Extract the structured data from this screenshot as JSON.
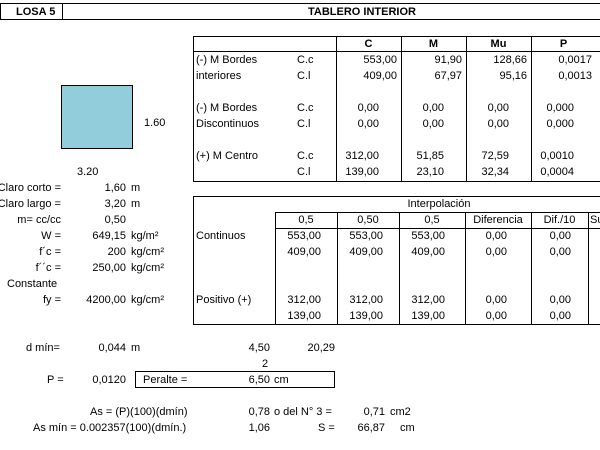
{
  "header": {
    "losa": "LOSA 5",
    "title": "TABLERO INTERIOR"
  },
  "slab_sketch": {
    "short_side": "1.60",
    "long_side": "3.20",
    "fill": "#92cddc"
  },
  "params": {
    "claro_corto": {
      "label": "Claro corto =",
      "value": "1,60",
      "unit": "m"
    },
    "claro_largo": {
      "label": "Claro largo =",
      "value": "3,20",
      "unit": "m"
    },
    "m": {
      "label": "m= cc/cc",
      "value": "0,50"
    },
    "W": {
      "label": "W =",
      "value": "649,15",
      "unit": "kg/m²"
    },
    "fc": {
      "label": "f´c =",
      "value": "200",
      "unit": "kg/cm²"
    },
    "fcc": {
      "label": "f´´c =",
      "value": "250,00",
      "unit": "kg/cm²"
    },
    "constante": "Constante",
    "fy": {
      "label": "fy =",
      "value": "4200,00",
      "unit": "kg/cm²"
    }
  },
  "moments_table": {
    "headers": [
      "C",
      "M",
      "Mu",
      "P"
    ],
    "groups": [
      {
        "label1": "(-) M Bordes",
        "label2": "interiores",
        "rows": [
          {
            "dir": "C.c",
            "values": [
              "553,00",
              "91,90",
              "128,66",
              "0,0017"
            ]
          },
          {
            "dir": "C.l",
            "values": [
              "409,00",
              "67,97",
              "95,16",
              "0,0013"
            ]
          }
        ]
      },
      {
        "label1": "(-) M Bordes",
        "label2": "Discontinuos",
        "rows": [
          {
            "dir": "C.c",
            "values": [
              "0,00",
              "0,00",
              "0,00",
              "0,000"
            ]
          },
          {
            "dir": "C.l",
            "values": [
              "0,00",
              "0,00",
              "0,00",
              "0,000"
            ]
          }
        ]
      },
      {
        "label1": "(+) M Centro",
        "label2": "",
        "rows": [
          {
            "dir": "C.c",
            "values": [
              "312,00",
              "51,85",
              "72,59",
              "0,0010"
            ]
          },
          {
            "dir": "C.l",
            "values": [
              "139,00",
              "23,10",
              "32,34",
              "0,0004"
            ]
          }
        ]
      }
    ]
  },
  "interp_table": {
    "title": "Interpolación",
    "headers": [
      "0,5",
      "0,50",
      "0,5",
      "Diferencia",
      "Dif./10",
      "Su"
    ],
    "groups": [
      {
        "label": "Continuos",
        "rows": [
          [
            "553,00",
            "553,00",
            "553,00",
            "0,00",
            "0,00"
          ],
          [
            "409,00",
            "409,00",
            "409,00",
            "0,00",
            "0,00"
          ]
        ]
      },
      {
        "label": "Positivo (+)",
        "rows": [
          [
            "312,00",
            "312,00",
            "312,00",
            "0,00",
            "0,00"
          ],
          [
            "139,00",
            "139,00",
            "139,00",
            "0,00",
            "0,00"
          ]
        ]
      }
    ]
  },
  "calc": {
    "dmin_label": "d mín=",
    "dmin_value": "0,044",
    "dmin_unit": "m",
    "v450": "4,50",
    "v2029": "20,29",
    "v2": "2",
    "P_label": "P =",
    "P_value": "0,0120",
    "peralte_label": "Peralte =",
    "peralte_value": "6,50",
    "peralte_unit": "cm",
    "as_label": "As = (P)(100)(dmín)",
    "as_value": "0,78",
    "as_or": "o del N° 3 =",
    "as_no3_value": "0,71",
    "as_no3_unit": "cm2",
    "asmin_label": "As mín = 0.002357(100)(dmín.)",
    "asmin_value": "1,06",
    "S_label": "S =",
    "S_value": "66,87",
    "S_unit": "cm"
  }
}
